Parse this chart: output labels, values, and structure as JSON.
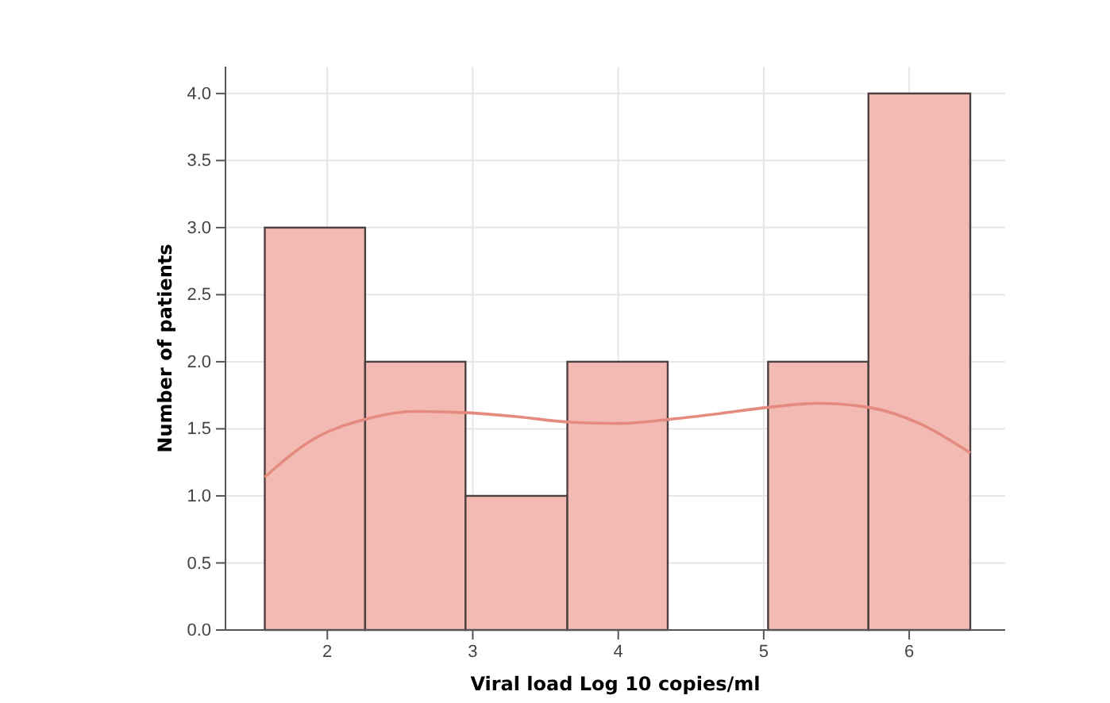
{
  "chart_data": {
    "type": "histogram",
    "xlabel": "Viral load Log 10 copies/ml",
    "ylabel": "Number of patients",
    "bins": [
      1.57,
      2.26,
      2.95,
      3.65,
      4.34,
      5.03,
      5.72,
      6.42
    ],
    "values": [
      3,
      2,
      1,
      2,
      0,
      2,
      4
    ],
    "color": "#f2bab3",
    "series": [
      {
        "type": "line",
        "color": "#e58a7e",
        "x": [
          1.57,
          1.9,
          2.26,
          2.6,
          2.96,
          3.31,
          3.66,
          4.01,
          4.35,
          4.67,
          5.03,
          5.37,
          5.72,
          6.07,
          6.42
        ],
        "values": [
          1.14,
          1.42,
          1.57,
          1.63,
          1.62,
          1.59,
          1.55,
          1.54,
          1.57,
          1.61,
          1.66,
          1.69,
          1.66,
          1.54,
          1.32
        ]
      }
    ],
    "xlim": [
      1.3,
      6.66
    ],
    "xticks": [
      2,
      3,
      4,
      5,
      6
    ],
    "ylim": [
      0,
      4.2
    ],
    "yticks": [
      {
        "value": 0,
        "label": "0.0"
      },
      {
        "value": 0.5,
        "label": "0.5"
      },
      {
        "value": 1,
        "label": "1.0"
      },
      {
        "value": 1.5,
        "label": "1.5"
      },
      {
        "value": 2,
        "label": "2.0"
      },
      {
        "value": 2.5,
        "label": "2.5"
      },
      {
        "value": 3,
        "label": "3.0"
      },
      {
        "value": 3.5,
        "label": "3.5"
      },
      {
        "value": 4,
        "label": "4.0"
      }
    ],
    "grid": true
  }
}
